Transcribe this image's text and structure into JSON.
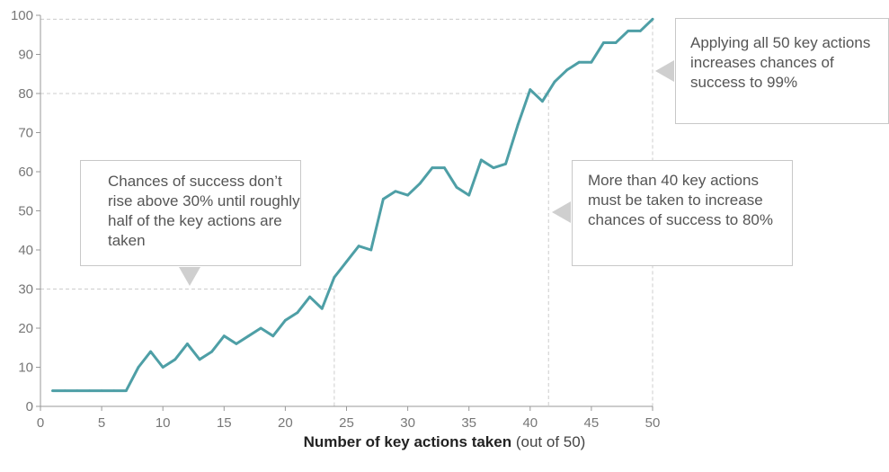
{
  "chart_data": {
    "type": "line",
    "title": "",
    "xlabel": "Number of key actions taken",
    "xlabel_note": "(out of 50)",
    "ylabel": "",
    "xlim": [
      0,
      50
    ],
    "ylim": [
      0,
      100
    ],
    "x_ticks": [
      "0",
      "5",
      "10",
      "15",
      "20",
      "25",
      "30",
      "35",
      "40",
      "45",
      "50"
    ],
    "y_ticks": [
      "0",
      "10",
      "20",
      "30",
      "40",
      "50",
      "60",
      "70",
      "80",
      "90",
      "100"
    ],
    "grid": false,
    "line_color": "#4e9fa6",
    "series": [
      {
        "x": [
          1,
          2,
          3,
          4,
          5,
          6,
          7,
          8,
          9,
          10,
          11,
          12,
          13,
          14,
          15,
          16,
          17,
          18,
          19,
          20,
          21,
          22,
          23,
          24,
          25,
          26,
          27,
          28,
          29,
          30,
          31,
          32,
          33,
          34,
          35,
          36,
          37,
          38,
          39,
          40,
          41,
          42,
          43,
          44,
          45,
          46,
          47,
          48,
          49,
          50
        ],
        "values": [
          4,
          4,
          4,
          4,
          4,
          4,
          4,
          10,
          14,
          10,
          12,
          16,
          12,
          14,
          18,
          16,
          18,
          20,
          18,
          22,
          24,
          28,
          25,
          33,
          37,
          41,
          40,
          53,
          55,
          54,
          57,
          61,
          61,
          56,
          54,
          63,
          61,
          62,
          72,
          81,
          78,
          83,
          86,
          88,
          88,
          93,
          93,
          96,
          96,
          99
        ]
      }
    ],
    "reference_lines": [
      {
        "x": 24,
        "y": 30
      },
      {
        "x": 41.5,
        "y": 80
      },
      {
        "x": 50,
        "y": 99
      }
    ]
  },
  "annotations": [
    {
      "text": "Chances of success don’t rise above 30% until roughly half of the key actions are taken"
    },
    {
      "text": "More than 40 key actions must be taken to increase chances of success to 80%"
    },
    {
      "text": "Applying all 50 key actions increases chances of success to 99%"
    }
  ],
  "colors": {
    "line": "#4e9fa6",
    "axis": "#999999",
    "reference": "#cccccc",
    "callout_border": "#c8c8c8",
    "arrow": "#cfcfcf"
  }
}
